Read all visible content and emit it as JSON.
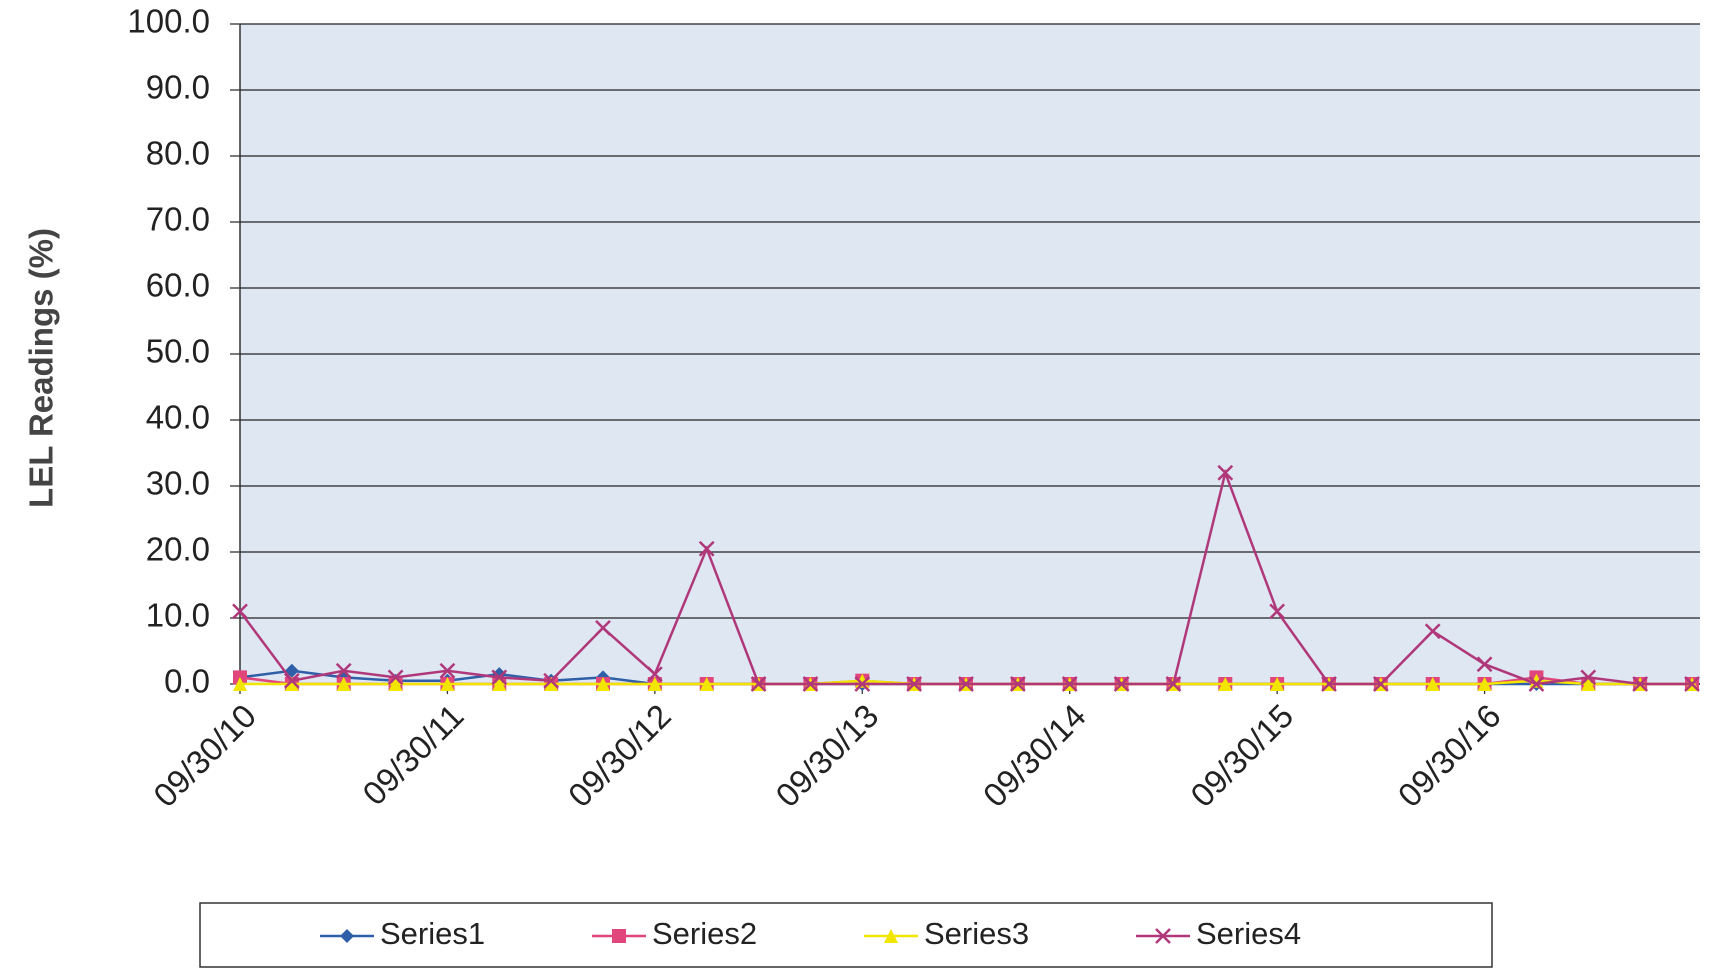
{
  "chart_data": {
    "type": "line",
    "y_axis_label": "LEL Readings (%)",
    "categories": [
      "09/30/10",
      null,
      null,
      null,
      "09/30/11",
      null,
      null,
      null,
      "09/30/12",
      null,
      null,
      null,
      "09/30/13",
      null,
      null,
      null,
      "09/30/14",
      null,
      null,
      null,
      "09/30/15",
      null,
      null,
      null,
      "09/30/16",
      null,
      null,
      null,
      null
    ],
    "series": [
      {
        "name": "Series1",
        "color": "#2f5fa8",
        "marker": "diamond",
        "values": [
          1,
          2,
          1,
          0.5,
          0.5,
          1.5,
          0.5,
          1,
          0,
          0,
          0,
          0,
          0,
          0,
          0,
          0,
          0,
          0,
          0,
          0,
          0,
          0,
          0,
          0,
          0,
          0,
          0,
          0,
          0
        ]
      },
      {
        "name": "Series2",
        "color": "#e0457b",
        "marker": "square",
        "values": [
          1,
          0,
          0,
          0,
          0,
          0,
          0,
          0,
          0,
          0,
          0,
          0,
          0.5,
          0,
          0,
          0,
          0,
          0,
          0,
          0,
          0,
          0,
          0,
          0,
          0,
          1,
          0,
          0,
          0
        ]
      },
      {
        "name": "Series3",
        "color": "#f2e600",
        "marker": "triangle",
        "values": [
          0,
          0,
          0,
          0,
          0,
          0,
          0,
          0,
          0,
          0,
          0,
          0,
          0.5,
          0,
          0,
          0,
          0,
          0,
          0,
          0,
          0,
          0,
          0,
          0,
          0,
          0.5,
          0,
          0,
          0
        ]
      },
      {
        "name": "Series4",
        "color": "#b0387a",
        "marker": "x",
        "values": [
          11,
          0.5,
          2,
          1,
          2,
          1,
          0.5,
          8.5,
          1.5,
          20.5,
          0,
          0,
          0,
          0,
          0,
          0,
          0,
          0,
          0,
          32,
          11,
          0,
          0,
          8,
          3,
          0,
          1,
          0,
          0
        ]
      }
    ],
    "ylim": [
      0,
      100
    ],
    "yticks": [
      {
        "value": 0,
        "label": "0.0"
      },
      {
        "value": 10,
        "label": "10.0"
      },
      {
        "value": 20,
        "label": "20.0"
      },
      {
        "value": 30,
        "label": "30.0"
      },
      {
        "value": 40,
        "label": "40.0"
      },
      {
        "value": 50,
        "label": "50.0"
      },
      {
        "value": 60,
        "label": "60.0"
      },
      {
        "value": 70,
        "label": "70.0"
      },
      {
        "value": 80,
        "label": "80.0"
      },
      {
        "value": 90,
        "label": "90.0"
      },
      {
        "value": 100,
        "label": "100.0"
      }
    ],
    "grid": true,
    "legend": "bottom"
  }
}
